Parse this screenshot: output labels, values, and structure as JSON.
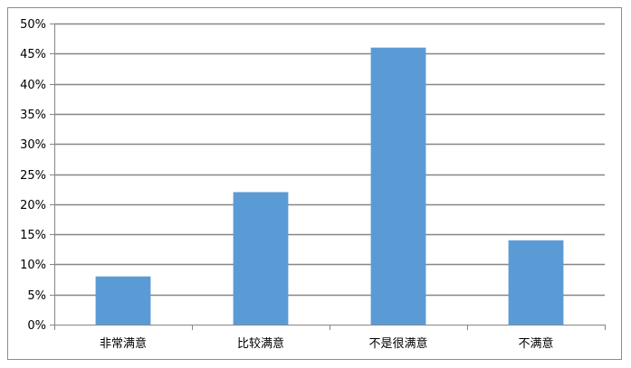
{
  "chart_data": {
    "type": "bar",
    "title": "",
    "xlabel": "",
    "ylabel": "",
    "categories": [
      "非常满意",
      "比较满意",
      "不是很满意",
      "不满意"
    ],
    "values": [
      8,
      22,
      46,
      14
    ],
    "value_unit": "%",
    "ylim": [
      0,
      50
    ],
    "yticks": [
      0,
      5,
      10,
      15,
      20,
      25,
      30,
      35,
      40,
      45,
      50
    ],
    "ytick_labels": [
      "0%",
      "5%",
      "10%",
      "15%",
      "20%",
      "25%",
      "30%",
      "35%",
      "40%",
      "45%",
      "50%"
    ],
    "grid": true,
    "legend": "none",
    "bar_color": "#5b9bd5",
    "gridline_color": "#868686",
    "axis_color": "#868686"
  }
}
